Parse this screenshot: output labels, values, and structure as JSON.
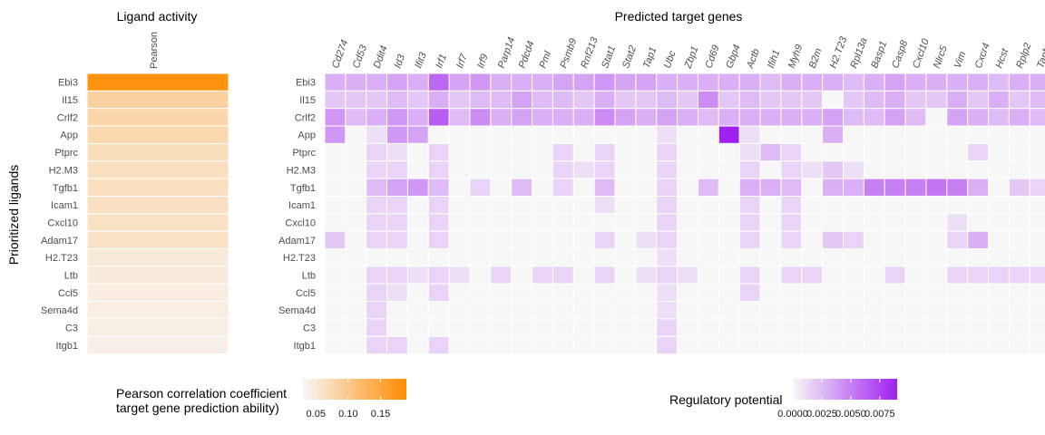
{
  "chart_data": [
    {
      "type": "heatmap",
      "title": "Ligand activity",
      "ylabel": "Prioritized ligands",
      "columns": [
        "Pearson"
      ],
      "rows": [
        "Ebi3",
        "Il15",
        "Crlf2",
        "App",
        "Ptprc",
        "H2.M3",
        "Tgfb1",
        "Icam1",
        "Cxcl10",
        "Adam17",
        "H2.T23",
        "Ltb",
        "Ccl5",
        "Sema4d",
        "C3",
        "Itgb1"
      ],
      "values": [
        0.18,
        0.085,
        0.08,
        0.077,
        0.068,
        0.066,
        0.065,
        0.064,
        0.063,
        0.062,
        0.05,
        0.048,
        0.045,
        0.044,
        0.042,
        0.04
      ],
      "legend": {
        "title": "Pearson correlation coefficient\ntarget gene prediction ability)",
        "ticks": [
          "0.05",
          "0.10",
          "0.15"
        ],
        "tick_values": [
          0.05,
          0.1,
          0.15
        ],
        "range": [
          0.03,
          0.19
        ],
        "colors": [
          "#f7f7f7",
          "#ff8c00"
        ],
        "placement": "bottom-left"
      }
    },
    {
      "type": "heatmap",
      "title": "Predicted target genes",
      "columns": [
        "Cd274",
        "Cd53",
        "Ddit4",
        "Id3",
        "Ifit3",
        "Irf1",
        "Irf7",
        "Irf9",
        "Parp14",
        "Pdcd4",
        "Pml",
        "Psmb9",
        "Rnf213",
        "Stat1",
        "Stat2",
        "Tap1",
        "Ubc",
        "Zbp1",
        "Cd69",
        "Gbp4",
        "Actb",
        "Ifih1",
        "Myh9",
        "B2m",
        "H2.T23",
        "Rpl13a",
        "Basp1",
        "Casp8",
        "Cxcl10",
        "Nlrc5",
        "Vim",
        "Cxcr4",
        "Hcst",
        "Rplp2",
        "Tapbp"
      ],
      "rows": [
        "Ebi3",
        "Il15",
        "Crlf2",
        "App",
        "Ptprc",
        "H2.M3",
        "Tgfb1",
        "Icam1",
        "Cxcl10",
        "Adam17",
        "H2.T23",
        "Ltb",
        "Ccl5",
        "Sema4d",
        "C3",
        "Itgb1"
      ],
      "values": [
        [
          0.003,
          0.003,
          0.003,
          0.0035,
          0.003,
          0.006,
          0.0035,
          0.004,
          0.003,
          0.003,
          0.003,
          0.0035,
          0.0035,
          0.004,
          0.0035,
          0.0035,
          0.003,
          0.003,
          0.003,
          0.003,
          0.003,
          0.0025,
          0.003,
          0.003,
          0.003,
          0.0025,
          0.003,
          0.0035,
          0.003,
          0.003,
          0.003,
          0.003,
          0.0025,
          0.003,
          0.003
        ],
        [
          0.002,
          0.002,
          0.002,
          0.0025,
          0.002,
          0.003,
          0.002,
          0.0025,
          0.0025,
          0.0035,
          0.0025,
          0.0025,
          0.002,
          0.003,
          0.002,
          0.002,
          0.0025,
          0.002,
          0.0045,
          0.002,
          0.0025,
          0.002,
          0.002,
          0.002,
          0.0,
          0.002,
          0.0025,
          0.003,
          0.002,
          0.002,
          0.003,
          0.002,
          0.003,
          0.002,
          0.0025
        ],
        [
          0.004,
          0.0025,
          0.003,
          0.004,
          0.003,
          0.0065,
          0.0025,
          0.0045,
          0.003,
          0.0035,
          0.003,
          0.003,
          0.003,
          0.0045,
          0.0035,
          0.003,
          0.0035,
          0.003,
          0.0025,
          0.003,
          0.003,
          0.003,
          0.003,
          0.003,
          0.0035,
          0.0025,
          0.0025,
          0.0035,
          0.0025,
          0.0,
          0.0035,
          0.003,
          0.0025,
          0.003,
          0.0025
        ],
        [
          0.004,
          0.0,
          0.001,
          0.004,
          0.0035,
          0.0,
          0.0,
          0.0,
          0.0,
          0.0,
          0.0,
          0.0,
          0.0,
          0.0,
          0.0,
          0.0,
          0.001,
          0.0,
          0.0,
          0.009,
          0.001,
          0.0,
          0.0,
          0.0,
          0.003,
          0.0,
          0.0,
          0.0,
          0.0,
          0.0,
          0.0,
          0.0,
          0.0,
          0.0,
          0.0
        ],
        [
          0.0,
          0.0,
          0.0015,
          0.001,
          0.0,
          0.0015,
          0.0,
          0.0,
          0.0,
          0.0,
          0.0,
          0.0015,
          0.0,
          0.0015,
          0.0,
          0.0,
          0.0015,
          0.0,
          0.0,
          0.0,
          0.001,
          0.0025,
          0.0015,
          0.0,
          0.0,
          0.0,
          0.0,
          0.0,
          0.0,
          0.0,
          0.0,
          0.0015,
          0.0,
          0.0,
          0.0
        ],
        [
          0.0,
          0.0,
          0.0015,
          0.0015,
          0.0,
          0.0015,
          0.0,
          0.0,
          0.0,
          0.0,
          0.0,
          0.0015,
          0.001,
          0.0015,
          0.0,
          0.0,
          0.0015,
          0.0,
          0.0,
          0.0,
          0.0015,
          0.0,
          0.0015,
          0.001,
          0.002,
          0.001,
          0.0,
          0.0,
          0.0,
          0.0,
          0.0,
          0.0,
          0.0,
          0.0,
          0.0
        ],
        [
          0.0,
          0.0,
          0.0025,
          0.0035,
          0.004,
          0.0025,
          0.0,
          0.0015,
          0.0,
          0.0025,
          0.0,
          0.0015,
          0.0,
          0.0025,
          0.0,
          0.0,
          0.0015,
          0.0,
          0.0025,
          0.0,
          0.003,
          0.003,
          0.0025,
          0.0,
          0.003,
          0.003,
          0.005,
          0.005,
          0.005,
          0.0055,
          0.005,
          0.003,
          0.0,
          0.002,
          0.0015
        ],
        [
          0.0,
          0.0,
          0.0015,
          0.0015,
          0.0,
          0.0015,
          0.0,
          0.0,
          0.0,
          0.0,
          0.0,
          0.0,
          0.0,
          0.001,
          0.0,
          0.0,
          0.0015,
          0.0,
          0.0,
          0.0,
          0.0015,
          0.0,
          0.0015,
          0.0,
          0.0,
          0.0,
          0.0,
          0.0,
          0.0,
          0.0,
          0.0,
          0.0,
          0.0,
          0.0,
          0.0
        ],
        [
          0.0,
          0.0,
          0.0015,
          0.0015,
          0.0,
          0.0015,
          0.0,
          0.0,
          0.0,
          0.0,
          0.0,
          0.0,
          0.0,
          0.0,
          0.0,
          0.0,
          0.0015,
          0.0,
          0.0,
          0.0,
          0.0015,
          0.0,
          0.0015,
          0.0,
          0.0,
          0.0,
          0.0,
          0.0,
          0.0,
          0.0,
          0.001,
          0.0,
          0.0,
          0.0,
          0.0
        ],
        [
          0.002,
          0.0,
          0.0015,
          0.0015,
          0.0,
          0.0015,
          0.0,
          0.0,
          0.0,
          0.0,
          0.0,
          0.0,
          0.0,
          0.0015,
          0.0,
          0.001,
          0.0015,
          0.0,
          0.0,
          0.0,
          0.0015,
          0.0,
          0.0015,
          0.0,
          0.002,
          0.0015,
          0.0,
          0.0,
          0.0,
          0.0,
          0.0015,
          0.003,
          0.0,
          0.0,
          0.0
        ],
        [
          0.0,
          0.0,
          0.0,
          0.0,
          0.0,
          0.0,
          0.0,
          0.0,
          0.0,
          0.0,
          0.0,
          0.0,
          0.0,
          0.0,
          0.0,
          0.0,
          0.001,
          0.0,
          0.0,
          0.0,
          0.0,
          0.0,
          0.0,
          0.0,
          0.0,
          0.0,
          0.0,
          0.0,
          0.0,
          0.0,
          0.0,
          0.0,
          0.0,
          0.0,
          0.0
        ],
        [
          0.0,
          0.0,
          0.0015,
          0.0015,
          0.001,
          0.0015,
          0.001,
          0.0,
          0.0015,
          0.0,
          0.0015,
          0.0015,
          0.0,
          0.0015,
          0.0,
          0.001,
          0.0015,
          0.001,
          0.0,
          0.0,
          0.0015,
          0.0,
          0.0015,
          0.0015,
          0.0,
          0.0,
          0.0,
          0.0015,
          0.0,
          0.0,
          0.0015,
          0.0015,
          0.0015,
          0.0015,
          0.0015
        ],
        [
          0.0,
          0.0,
          0.0015,
          0.001,
          0.0,
          0.0015,
          0.0,
          0.0,
          0.0,
          0.0,
          0.0,
          0.0,
          0.0,
          0.0,
          0.0,
          0.0,
          0.001,
          0.0,
          0.0,
          0.0,
          0.0015,
          0.0,
          0.0,
          0.0,
          0.0,
          0.0,
          0.0,
          0.0,
          0.0,
          0.0,
          0.0,
          0.0,
          0.0,
          0.0,
          0.0
        ],
        [
          0.0,
          0.0,
          0.0015,
          0.0,
          0.0,
          0.0,
          0.0,
          0.0,
          0.0,
          0.0,
          0.0,
          0.0,
          0.0,
          0.0,
          0.0,
          0.0,
          0.001,
          0.0,
          0.0,
          0.0,
          0.0,
          0.0,
          0.0,
          0.0,
          0.0,
          0.0,
          0.0,
          0.0,
          0.0,
          0.0,
          0.0,
          0.0,
          0.0,
          0.0,
          0.0
        ],
        [
          0.0,
          0.0,
          0.0015,
          0.0,
          0.0,
          0.0,
          0.0,
          0.0,
          0.0,
          0.0,
          0.0,
          0.0,
          0.0,
          0.0,
          0.0,
          0.0,
          0.0015,
          0.0,
          0.0,
          0.0,
          0.0,
          0.0,
          0.0,
          0.0,
          0.0,
          0.0,
          0.0,
          0.0,
          0.0,
          0.0,
          0.0,
          0.0,
          0.0,
          0.0,
          0.0
        ],
        [
          0.0,
          0.0,
          0.0015,
          0.0015,
          0.0,
          0.0015,
          0.0,
          0.0,
          0.0,
          0.0,
          0.0,
          0.0,
          0.0,
          0.0,
          0.0,
          0.0,
          0.0015,
          0.0,
          0.0,
          0.0,
          0.0,
          0.0,
          0.0,
          0.0,
          0.0,
          0.0,
          0.0,
          0.0,
          0.0,
          0.0,
          0.0,
          0.0,
          0.0,
          0.0,
          0.0
        ]
      ],
      "legend": {
        "title": "Regulatory potential",
        "ticks": [
          "0.0000",
          "0.0025",
          "0.0050",
          "0.0075"
        ],
        "tick_values": [
          0.0,
          0.0025,
          0.005,
          0.0075
        ],
        "range": [
          0.0,
          0.009
        ],
        "colors": [
          "#f7f7f7",
          "#a020f0"
        ],
        "placement": "bottom-right"
      }
    }
  ]
}
